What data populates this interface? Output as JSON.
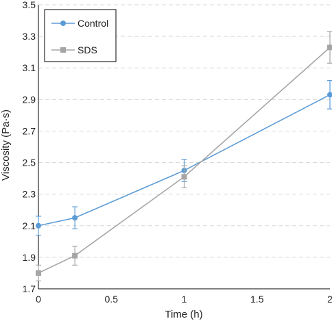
{
  "chart_data": {
    "type": "line",
    "xlabel": "Time (h)",
    "ylabel": "Viscosity (Pa·s)",
    "xlim": [
      0,
      2
    ],
    "ylim": [
      1.7,
      3.5
    ],
    "x_ticks": [
      "0",
      "0.5",
      "1",
      "1.5",
      "2"
    ],
    "y_ticks": [
      "1.7",
      "1.9",
      "2.1",
      "2.3",
      "2.5",
      "2.7",
      "2.9",
      "3.1",
      "3.3",
      "3.5"
    ],
    "grid": "horizontal-dashed",
    "legend_position": "top-left",
    "series": [
      {
        "name": "Control",
        "color": "#5b9bd5",
        "marker": "circle",
        "x": [
          0,
          0.25,
          1,
          2
        ],
        "y": [
          2.1,
          2.15,
          2.45,
          2.93
        ],
        "error": [
          0.06,
          0.07,
          0.07,
          0.09
        ]
      },
      {
        "name": "SDS",
        "color": "#a5a5a5",
        "marker": "square",
        "x": [
          0,
          0.25,
          1,
          2
        ],
        "y": [
          1.8,
          1.91,
          2.41,
          3.23
        ],
        "error": [
          0.05,
          0.06,
          0.07,
          0.1
        ]
      }
    ]
  }
}
